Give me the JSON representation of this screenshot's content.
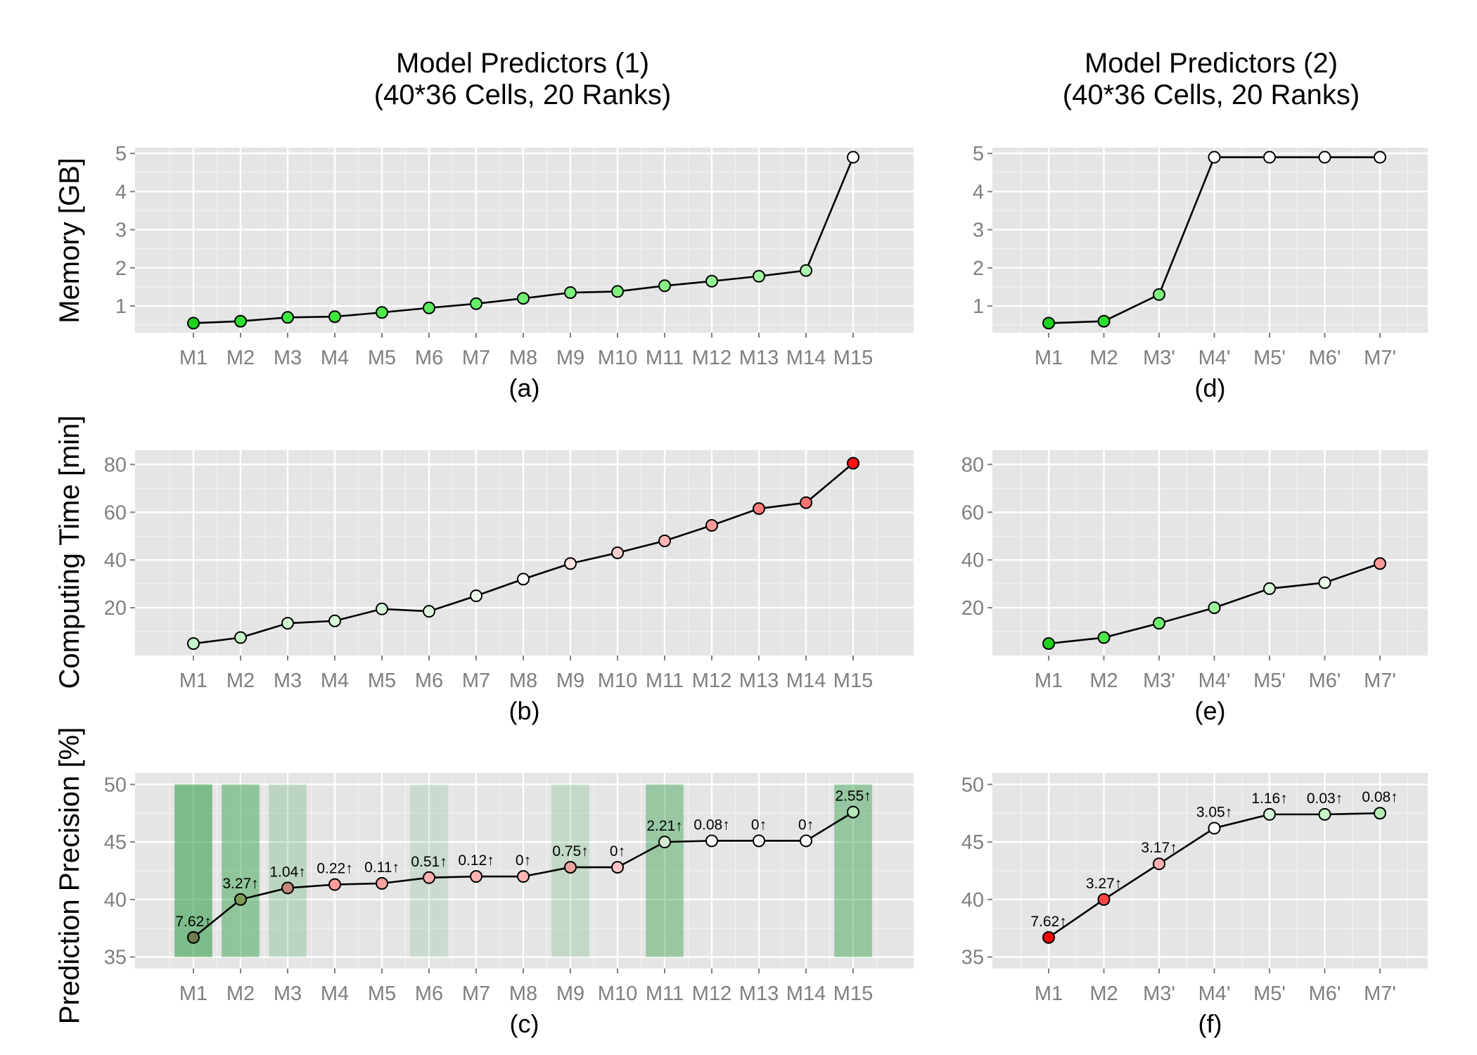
{
  "column_titles": {
    "left_line1": "Model Predictors (1)",
    "left_line2": "(40*36 Cells, 20 Ranks)",
    "right_line1": "Model Predictors (2)",
    "right_line2": "(40*36 Cells, 20 Ranks)"
  },
  "row_labels": {
    "row1": "Memory [GB]",
    "row2": "Computing Time [min]",
    "row3": "Prediction Precision [%]"
  },
  "chart_data": [
    {
      "id": "a",
      "caption": "(a)",
      "type": "line",
      "row": 1,
      "col": 1,
      "ylabel": "Memory [GB]",
      "ylim": [
        0.3,
        5.15
      ],
      "yticks": [
        1,
        2,
        3,
        4,
        5
      ],
      "categories": [
        "M1",
        "M2",
        "M3",
        "M4",
        "M5",
        "M6",
        "M7",
        "M8",
        "M9",
        "M10",
        "M11",
        "M12",
        "M13",
        "M14",
        "M15"
      ],
      "values": [
        0.55,
        0.6,
        0.7,
        0.72,
        0.83,
        0.95,
        1.06,
        1.2,
        1.35,
        1.38,
        1.53,
        1.65,
        1.78,
        1.93,
        4.9
      ],
      "point_colors": [
        "#1ed21e",
        "#2ee02e",
        "#3fe63f",
        "#3fe63f",
        "#4ee84e",
        "#5aea5a",
        "#66ec66",
        "#72ee72",
        "#7df07d",
        "#7df07d",
        "#8af28a",
        "#95f495",
        "#a1f6a1",
        "#aef8ae",
        "#ffffff"
      ],
      "grid": true
    },
    {
      "id": "b",
      "caption": "(b)",
      "type": "line",
      "row": 2,
      "col": 1,
      "ylabel": "Computing Time [min]",
      "ylim": [
        0,
        86
      ],
      "yticks": [
        20,
        40,
        60,
        80
      ],
      "categories": [
        "M1",
        "M2",
        "M3",
        "M4",
        "M5",
        "M6",
        "M7",
        "M8",
        "M9",
        "M10",
        "M11",
        "M12",
        "M13",
        "M14",
        "M15"
      ],
      "values": [
        5,
        7.5,
        13.5,
        14.5,
        19.5,
        18.5,
        25,
        32,
        38.5,
        43,
        48,
        54.5,
        61.5,
        64,
        80.5
      ],
      "point_colors": [
        "#c8f5c8",
        "#c8f5c8",
        "#d2f7d2",
        "#d9f8d9",
        "#dcf8dc",
        "#dcf8dc",
        "#eefaee",
        "#ffffff",
        "#ffe2e2",
        "#ffcfcf",
        "#ffb8b8",
        "#ff9a9a",
        "#ff7a7a",
        "#ff7272",
        "#ff1111"
      ],
      "grid": true
    },
    {
      "id": "c",
      "caption": "(c)",
      "type": "line",
      "row": 3,
      "col": 1,
      "ylabel": "Prediction Precision [%]",
      "ylim": [
        34,
        51
      ],
      "yticks": [
        35,
        40,
        45,
        50
      ],
      "categories": [
        "M1",
        "M2",
        "M3",
        "M4",
        "M5",
        "M6",
        "M7",
        "M8",
        "M9",
        "M10",
        "M11",
        "M12",
        "M13",
        "M14",
        "M15"
      ],
      "values": [
        36.7,
        40.0,
        41.0,
        41.3,
        41.4,
        41.9,
        42.0,
        42.0,
        42.8,
        42.8,
        45.0,
        45.1,
        45.1,
        45.1,
        47.6
      ],
      "data_labels": [
        "7.62↑",
        "3.27↑",
        "1.04↑",
        "0.22↑",
        "0.11↑",
        "0.51↑",
        "0.12↑",
        "0↑",
        "0.75↑",
        "0↑",
        "2.21↑",
        "0.08↑",
        "0↑",
        "0↑",
        "2.55↑"
      ],
      "point_colors": [
        "#6e7d4e",
        "#7f9a55",
        "#c78a7a",
        "#ff9e9e",
        "#ffa4a4",
        "#ffb0b0",
        "#ffb4b4",
        "#ffb4b4",
        "#e8a4a0",
        "#ffc6c6",
        "#d2ecd0",
        "#ffffff",
        "#ffffff",
        "#ffffff",
        "#b6e8b6"
      ],
      "highlight_bars": [
        {
          "category": "M1",
          "strength": 0.82
        },
        {
          "category": "M2",
          "strength": 0.66
        },
        {
          "category": "M3",
          "strength": 0.32
        },
        {
          "category": "M6",
          "strength": 0.2
        },
        {
          "category": "M9",
          "strength": 0.27
        },
        {
          "category": "M11",
          "strength": 0.6
        },
        {
          "category": "M15",
          "strength": 0.62
        }
      ],
      "highlight_color": "#2e9e46",
      "grid": true
    },
    {
      "id": "d",
      "caption": "(d)",
      "type": "line",
      "row": 1,
      "col": 2,
      "ylim": [
        0.3,
        5.15
      ],
      "yticks": [
        1,
        2,
        3,
        4,
        5
      ],
      "categories": [
        "M1",
        "M2",
        "M3'",
        "M4'",
        "M5'",
        "M6'",
        "M7'"
      ],
      "values": [
        0.55,
        0.6,
        1.3,
        4.9,
        4.9,
        4.9,
        4.9
      ],
      "point_colors": [
        "#1ed21e",
        "#2ee02e",
        "#7df07d",
        "#ffffff",
        "#ffffff",
        "#ffffff",
        "#ffffff"
      ],
      "grid": true
    },
    {
      "id": "e",
      "caption": "(e)",
      "type": "line",
      "row": 2,
      "col": 2,
      "ylim": [
        0,
        86
      ],
      "yticks": [
        20,
        40,
        60,
        80
      ],
      "categories": [
        "M1",
        "M2",
        "M3'",
        "M4'",
        "M5'",
        "M6'",
        "M7'"
      ],
      "values": [
        5,
        7.5,
        13.5,
        20,
        28,
        30.5,
        38.5
      ],
      "point_colors": [
        "#1ed21e",
        "#4ee84e",
        "#72ee72",
        "#a1f6a1",
        "#d9f8d9",
        "#eefaee",
        "#ff9a9a"
      ],
      "grid": true
    },
    {
      "id": "f",
      "caption": "(f)",
      "type": "line",
      "row": 3,
      "col": 2,
      "ylim": [
        34,
        51
      ],
      "yticks": [
        35,
        40,
        45,
        50
      ],
      "categories": [
        "M1",
        "M2",
        "M3'",
        "M4'",
        "M5'",
        "M6'",
        "M7'"
      ],
      "values": [
        36.7,
        40.0,
        43.1,
        46.2,
        47.4,
        47.4,
        47.5
      ],
      "data_labels": [
        "7.62↑",
        "3.27↑",
        "3.17↑",
        "3.05↑",
        "1.16↑",
        "0.03↑",
        "0.08↑"
      ],
      "point_colors": [
        "#ff0000",
        "#ff4444",
        "#ffb0b0",
        "#ffffff",
        "#d9f8d9",
        "#c8f5c8",
        "#b6eeb6"
      ],
      "grid": true
    }
  ]
}
